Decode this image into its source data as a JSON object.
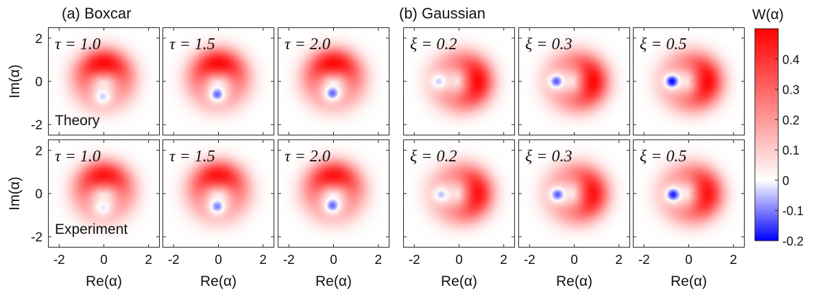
{
  "chart_data": {
    "type": "heatmap",
    "colorbar": {
      "label": "W(α)",
      "ticks": [
        0.4,
        0.3,
        0.2,
        0.1,
        0,
        -0.1,
        -0.2
      ],
      "tick_labels": [
        "0.4",
        "0.3",
        "0.2",
        "0.1",
        "0",
        "-0.1",
        "-0.2"
      ],
      "range": [
        -0.2,
        0.5
      ],
      "colors": {
        "negative": "#0000ff",
        "zero": "#ffffff",
        "positive": "#ff0000"
      }
    },
    "axes": {
      "xlabel": "Re(α)",
      "ylabel": "Im(α)",
      "xlim": [
        -2.5,
        2.5
      ],
      "ylim": [
        -2.5,
        2.5
      ],
      "xticks": [
        "-2",
        "0",
        "2"
      ],
      "yticks": [
        "2",
        "0",
        "-2"
      ]
    },
    "groups": [
      {
        "label": "(a)  Boxcar"
      },
      {
        "label": "(b) Gaussian"
      }
    ],
    "row_labels": [
      "Theory",
      "Experiment"
    ],
    "panels": [
      {
        "row": 0,
        "col": 0,
        "param": "τ = 1.0",
        "ring_peak": 0.48,
        "ring_angle": 90,
        "dip_x": -0.05,
        "dip_y": -0.7,
        "dip_value": -0.04
      },
      {
        "row": 0,
        "col": 1,
        "param": "τ = 1.5",
        "ring_peak": 0.48,
        "ring_angle": 90,
        "dip_x": -0.05,
        "dip_y": -0.6,
        "dip_value": -0.12
      },
      {
        "row": 0,
        "col": 2,
        "param": "τ = 2.0",
        "ring_peak": 0.48,
        "ring_angle": 90,
        "dip_x": -0.05,
        "dip_y": -0.55,
        "dip_value": -0.12
      },
      {
        "row": 0,
        "col": 3,
        "param": "ξ = 0.2",
        "ring_peak": 0.48,
        "ring_angle": 0,
        "dip_x": -0.9,
        "dip_y": 0.0,
        "dip_value": -0.04
      },
      {
        "row": 0,
        "col": 4,
        "param": "ξ = 0.3",
        "ring_peak": 0.48,
        "ring_angle": 0,
        "dip_x": -0.8,
        "dip_y": 0.0,
        "dip_value": -0.13
      },
      {
        "row": 0,
        "col": 5,
        "param": "ξ = 0.5",
        "ring_peak": 0.48,
        "ring_angle": 0,
        "dip_x": -0.75,
        "dip_y": 0.0,
        "dip_value": -0.2
      },
      {
        "row": 1,
        "col": 0,
        "param": "τ = 1.0",
        "ring_peak": 0.46,
        "ring_angle": 90,
        "dip_x": -0.05,
        "dip_y": -0.65,
        "dip_value": -0.02
      },
      {
        "row": 1,
        "col": 1,
        "param": "τ = 1.5",
        "ring_peak": 0.46,
        "ring_angle": 90,
        "dip_x": -0.05,
        "dip_y": -0.6,
        "dip_value": -0.1
      },
      {
        "row": 1,
        "col": 2,
        "param": "τ = 2.0",
        "ring_peak": 0.46,
        "ring_angle": 90,
        "dip_x": -0.05,
        "dip_y": -0.55,
        "dip_value": -0.12
      },
      {
        "row": 1,
        "col": 3,
        "param": "ξ = 0.2",
        "ring_peak": 0.46,
        "ring_angle": 0,
        "dip_x": -0.8,
        "dip_y": -0.05,
        "dip_value": -0.05
      },
      {
        "row": 1,
        "col": 4,
        "param": "ξ = 0.3",
        "ring_peak": 0.46,
        "ring_angle": 0,
        "dip_x": -0.75,
        "dip_y": -0.05,
        "dip_value": -0.13
      },
      {
        "row": 1,
        "col": 5,
        "param": "ξ = 0.5",
        "ring_peak": 0.46,
        "ring_angle": 0,
        "dip_x": -0.7,
        "dip_y": -0.05,
        "dip_value": -0.18
      }
    ]
  }
}
